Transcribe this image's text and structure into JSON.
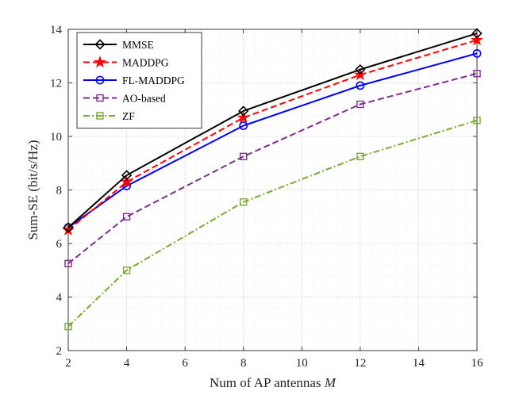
{
  "chart_data": {
    "type": "line",
    "xlabel": "Num of AP antennas",
    "xlabel_var": "M",
    "ylabel": "Sum-SE (bit/s/Hz)",
    "xlim": [
      2,
      16
    ],
    "ylim": [
      2,
      14
    ],
    "xticks": [
      2,
      4,
      6,
      8,
      10,
      12,
      14,
      16
    ],
    "yticks": [
      2,
      4,
      6,
      8,
      10,
      12,
      14
    ],
    "grid": "major and minor, dotted",
    "legend_position": "top-left",
    "x": [
      2,
      4,
      8,
      12,
      16
    ],
    "series": [
      {
        "name": "MMSE",
        "values": [
          6.6,
          8.55,
          10.95,
          12.5,
          13.85
        ],
        "color": "#000000",
        "line_style": "solid",
        "marker": "diamond"
      },
      {
        "name": "MADDPG",
        "values": [
          6.5,
          8.3,
          10.7,
          12.3,
          13.6
        ],
        "color": "#ff0000",
        "line_style": "dashed",
        "marker": "star"
      },
      {
        "name": "FL-MADDPG",
        "values": [
          6.6,
          8.15,
          10.4,
          11.9,
          13.1
        ],
        "color": "#0000ff",
        "line_style": "solid",
        "marker": "circle"
      },
      {
        "name": "AO-based",
        "values": [
          5.25,
          7.0,
          9.25,
          11.2,
          12.35
        ],
        "color": "#7e2f8e",
        "line_style": "dashed",
        "marker": "square"
      },
      {
        "name": "ZF",
        "values": [
          2.9,
          5.0,
          7.55,
          9.25,
          10.6
        ],
        "color": "#77ac30",
        "line_style": "dash-dot",
        "marker": "square"
      }
    ]
  }
}
